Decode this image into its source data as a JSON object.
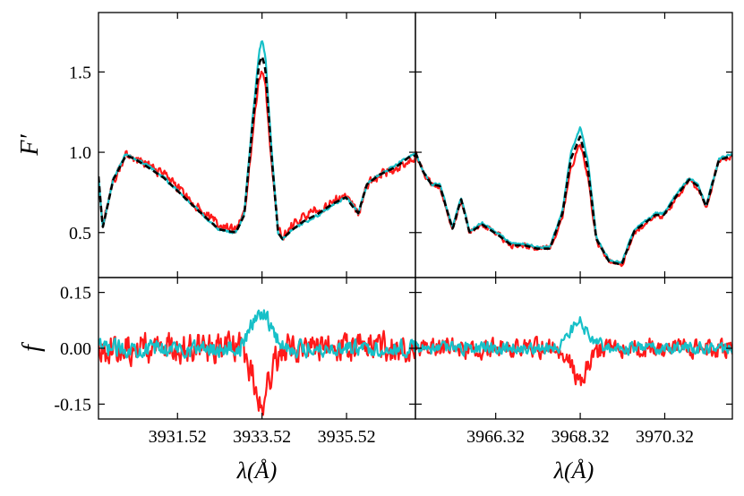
{
  "colors": {
    "red": "#ff1a1a",
    "cyan": "#17c0c8",
    "black": "#000000"
  },
  "chart_data": [
    {
      "panel": "top-left",
      "type": "line",
      "ylabel": "F′",
      "xlim": [
        3929.65,
        3937.15
      ],
      "ylim": [
        0.22,
        1.87
      ],
      "yticks": [
        0.5,
        1.0,
        1.5
      ],
      "ytick_labels": [
        "0.5",
        "1.0",
        "1.5"
      ],
      "xticks": [
        3931.52,
        3933.52,
        3935.52
      ],
      "series": [
        {
          "color": "red",
          "style": "solid",
          "noise": 0.04,
          "x": [
            3929.65,
            3929.75,
            3930.0,
            3930.3,
            3930.5,
            3930.8,
            3931.2,
            3931.6,
            3932.0,
            3932.5,
            3932.9,
            3933.1,
            3933.3,
            3933.45,
            3933.52,
            3933.6,
            3933.75,
            3933.9,
            3934.0,
            3934.2,
            3934.5,
            3934.8,
            3935.2,
            3935.5,
            3935.7,
            3935.8,
            3936.0,
            3936.3,
            3936.7,
            3937.0,
            3937.15
          ],
          "y": [
            0.85,
            0.55,
            0.82,
            0.98,
            0.97,
            0.92,
            0.86,
            0.76,
            0.66,
            0.55,
            0.52,
            0.62,
            1.1,
            1.45,
            1.5,
            1.42,
            0.9,
            0.52,
            0.48,
            0.54,
            0.6,
            0.64,
            0.7,
            0.72,
            0.65,
            0.62,
            0.8,
            0.86,
            0.9,
            0.96,
            0.97
          ]
        },
        {
          "color": "cyan",
          "style": "solid",
          "noise": 0.012,
          "x": [
            3929.65,
            3929.75,
            3930.0,
            3930.3,
            3930.5,
            3930.8,
            3931.2,
            3931.6,
            3932.0,
            3932.5,
            3932.9,
            3933.1,
            3933.3,
            3933.45,
            3933.52,
            3933.6,
            3933.75,
            3933.9,
            3934.0,
            3934.2,
            3934.5,
            3934.8,
            3935.2,
            3935.5,
            3935.7,
            3935.8,
            3936.0,
            3936.3,
            3936.7,
            3937.0,
            3937.15
          ],
          "y": [
            0.85,
            0.53,
            0.84,
            0.99,
            0.96,
            0.92,
            0.84,
            0.74,
            0.64,
            0.52,
            0.5,
            0.62,
            1.22,
            1.62,
            1.7,
            1.6,
            1.0,
            0.5,
            0.46,
            0.51,
            0.56,
            0.6,
            0.67,
            0.72,
            0.66,
            0.62,
            0.8,
            0.86,
            0.92,
            0.98,
            0.99
          ]
        },
        {
          "color": "black",
          "style": "dashed",
          "noise": 0,
          "x": [
            3929.65,
            3929.75,
            3930.0,
            3930.3,
            3930.5,
            3930.8,
            3931.2,
            3931.6,
            3932.0,
            3932.5,
            3932.9,
            3933.1,
            3933.3,
            3933.45,
            3933.52,
            3933.6,
            3933.75,
            3933.9,
            3934.0,
            3934.2,
            3934.5,
            3934.8,
            3935.2,
            3935.5,
            3935.7,
            3935.8,
            3936.0,
            3936.3,
            3936.7,
            3937.0,
            3937.15
          ],
          "y": [
            0.85,
            0.53,
            0.83,
            0.98,
            0.96,
            0.91,
            0.84,
            0.74,
            0.64,
            0.52,
            0.5,
            0.61,
            1.18,
            1.55,
            1.6,
            1.52,
            0.96,
            0.5,
            0.46,
            0.51,
            0.57,
            0.61,
            0.68,
            0.72,
            0.65,
            0.62,
            0.8,
            0.86,
            0.91,
            0.97,
            0.98
          ]
        }
      ]
    },
    {
      "panel": "top-right",
      "type": "line",
      "xlim": [
        3964.42,
        3971.92
      ],
      "ylim": [
        0.22,
        1.87
      ],
      "yticks": [
        0.5,
        1.0,
        1.5
      ],
      "xticks": [
        3966.32,
        3968.32,
        3970.32
      ],
      "series": [
        {
          "color": "red",
          "style": "solid",
          "noise": 0.025,
          "x": [
            3964.42,
            3964.6,
            3964.8,
            3965.0,
            3965.3,
            3965.5,
            3965.7,
            3966.0,
            3966.4,
            3966.7,
            3967.0,
            3967.3,
            3967.6,
            3967.9,
            3968.1,
            3968.32,
            3968.5,
            3968.7,
            3969.0,
            3969.3,
            3969.6,
            3969.9,
            3970.1,
            3970.3,
            3970.6,
            3970.9,
            3971.1,
            3971.3,
            3971.6,
            3971.92
          ],
          "y": [
            1.0,
            0.88,
            0.8,
            0.78,
            0.52,
            0.7,
            0.5,
            0.55,
            0.48,
            0.42,
            0.42,
            0.4,
            0.4,
            0.6,
            0.9,
            1.05,
            0.85,
            0.45,
            0.32,
            0.3,
            0.5,
            0.56,
            0.6,
            0.6,
            0.72,
            0.82,
            0.78,
            0.65,
            0.95,
            0.98
          ]
        },
        {
          "color": "cyan",
          "style": "solid",
          "noise": 0.01,
          "x": [
            3964.42,
            3964.6,
            3964.8,
            3965.0,
            3965.3,
            3965.5,
            3965.7,
            3966.0,
            3966.4,
            3966.7,
            3967.0,
            3967.3,
            3967.6,
            3967.9,
            3968.1,
            3968.32,
            3968.5,
            3968.7,
            3969.0,
            3969.3,
            3969.6,
            3969.9,
            3970.1,
            3970.3,
            3970.6,
            3970.9,
            3971.1,
            3971.3,
            3971.6,
            3971.92
          ],
          "y": [
            1.0,
            0.88,
            0.8,
            0.8,
            0.53,
            0.72,
            0.51,
            0.56,
            0.49,
            0.43,
            0.43,
            0.41,
            0.41,
            0.64,
            1.0,
            1.16,
            0.95,
            0.47,
            0.33,
            0.31,
            0.52,
            0.58,
            0.62,
            0.62,
            0.74,
            0.84,
            0.8,
            0.67,
            0.96,
            0.99
          ]
        },
        {
          "color": "black",
          "style": "dashed",
          "noise": 0,
          "x": [
            3964.42,
            3964.6,
            3964.8,
            3965.0,
            3965.3,
            3965.5,
            3965.7,
            3966.0,
            3966.4,
            3966.7,
            3967.0,
            3967.3,
            3967.6,
            3967.9,
            3968.1,
            3968.32,
            3968.5,
            3968.7,
            3969.0,
            3969.3,
            3969.6,
            3969.9,
            3970.1,
            3970.3,
            3970.6,
            3970.9,
            3971.1,
            3971.3,
            3971.6,
            3971.92
          ],
          "y": [
            1.0,
            0.88,
            0.8,
            0.79,
            0.52,
            0.71,
            0.5,
            0.55,
            0.48,
            0.42,
            0.42,
            0.4,
            0.4,
            0.62,
            0.96,
            1.1,
            0.9,
            0.46,
            0.32,
            0.3,
            0.51,
            0.57,
            0.61,
            0.61,
            0.73,
            0.83,
            0.79,
            0.66,
            0.95,
            0.98
          ]
        }
      ]
    },
    {
      "panel": "bottom-left",
      "type": "line",
      "ylabel": "f",
      "xlabel": "λ(Å)",
      "xlim": [
        3929.65,
        3937.15
      ],
      "ylim": [
        -0.19,
        0.19
      ],
      "yticks": [
        -0.15,
        0.0,
        0.15
      ],
      "ytick_labels": [
        "-0.15",
        "0.00",
        "0.15"
      ],
      "xticks": [
        3931.52,
        3933.52,
        3935.52
      ],
      "xtick_labels": [
        "3931.52",
        "3933.52",
        "3935.52"
      ],
      "series": [
        {
          "color": "red",
          "style": "solid",
          "noise": 0.055,
          "x": [
            3929.65,
            3933.0,
            3933.2,
            3933.4,
            3933.52,
            3933.65,
            3933.85,
            3934.1,
            3937.15
          ],
          "y": [
            0.0,
            0.0,
            -0.04,
            -0.12,
            -0.15,
            -0.1,
            -0.03,
            0.0,
            0.0
          ]
        },
        {
          "color": "cyan",
          "style": "solid",
          "noise": 0.03,
          "x": [
            3929.65,
            3933.0,
            3933.2,
            3933.4,
            3933.52,
            3933.65,
            3933.85,
            3934.1,
            3937.15
          ],
          "y": [
            0.0,
            0.0,
            0.04,
            0.09,
            0.1,
            0.08,
            0.03,
            0.0,
            0.0
          ]
        }
      ]
    },
    {
      "panel": "bottom-right",
      "type": "line",
      "xlabel": "λ(Å)",
      "xlim": [
        3964.42,
        3971.92
      ],
      "ylim": [
        -0.19,
        0.19
      ],
      "yticks": [
        -0.15,
        0.0,
        0.15
      ],
      "xticks": [
        3966.32,
        3968.32,
        3970.32
      ],
      "xtick_labels": [
        "3966.32",
        "3968.32",
        "3970.32"
      ],
      "series": [
        {
          "color": "red",
          "style": "solid",
          "noise": 0.035,
          "x": [
            3964.42,
            3967.8,
            3968.0,
            3968.2,
            3968.32,
            3968.45,
            3968.65,
            3968.9,
            3971.92
          ],
          "y": [
            0.0,
            0.0,
            -0.02,
            -0.07,
            -0.09,
            -0.06,
            -0.02,
            0.0,
            0.0
          ]
        },
        {
          "color": "cyan",
          "style": "solid",
          "noise": 0.022,
          "x": [
            3964.42,
            3967.8,
            3968.0,
            3968.2,
            3968.32,
            3968.45,
            3968.65,
            3968.9,
            3971.92
          ],
          "y": [
            0.0,
            0.0,
            0.03,
            0.06,
            0.07,
            0.05,
            0.02,
            0.0,
            0.0
          ]
        }
      ]
    }
  ]
}
